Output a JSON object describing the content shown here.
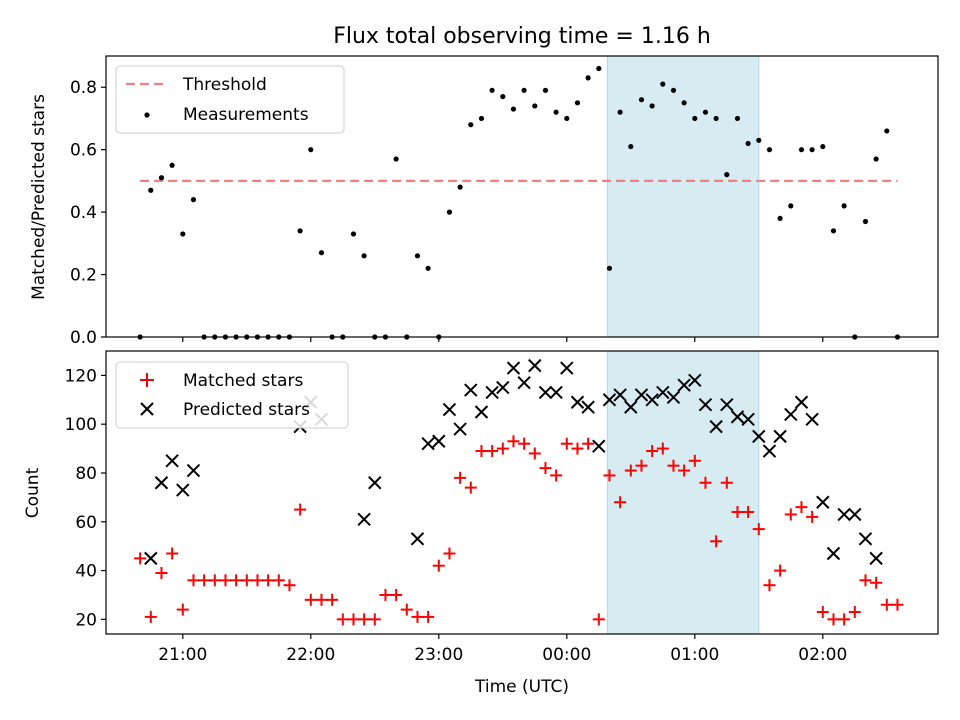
{
  "chart_data": [
    {
      "type": "scatter",
      "title": "Flux total observing time = 1.16 h",
      "ylabel": "Matched/Predicted stars",
      "xlim": [
        "20:24",
        "02:54"
      ],
      "ylim": [
        0,
        0.9
      ],
      "yticks": [
        "0.0",
        "0.2",
        "0.4",
        "0.6",
        "0.8"
      ],
      "shaded_span": [
        "00:19",
        "01:30"
      ],
      "legend": {
        "position": "top-left",
        "entries": [
          "Threshold",
          "Measurements"
        ]
      },
      "threshold": {
        "name": "Threshold",
        "value": 0.5,
        "x": [
          "20:40",
          "02:35"
        ],
        "color": "#f08080"
      },
      "measurements": {
        "name": "Measurements",
        "color": "#000000",
        "x": [
          "20:40",
          "20:45",
          "20:50",
          "20:55",
          "21:00",
          "21:05",
          "21:10",
          "21:15",
          "21:20",
          "21:25",
          "21:30",
          "21:35",
          "21:40",
          "21:45",
          "21:50",
          "21:55",
          "22:00",
          "22:05",
          "22:10",
          "22:15",
          "22:20",
          "22:25",
          "22:30",
          "22:35",
          "22:40",
          "22:45",
          "22:50",
          "22:55",
          "23:00",
          "23:05",
          "23:10",
          "23:15",
          "23:20",
          "23:25",
          "23:30",
          "23:35",
          "23:40",
          "23:45",
          "23:50",
          "23:55",
          "00:00",
          "00:05",
          "00:10",
          "00:15",
          "00:20",
          "00:25",
          "00:30",
          "00:35",
          "00:40",
          "00:45",
          "00:50",
          "00:55",
          "01:00",
          "01:05",
          "01:10",
          "01:15",
          "01:20",
          "01:25",
          "01:30",
          "01:35",
          "01:40",
          "01:45",
          "01:50",
          "01:55",
          "02:00",
          "02:05",
          "02:10",
          "02:15",
          "02:20",
          "02:25",
          "02:30",
          "02:35"
        ],
        "y": [
          0.0,
          0.47,
          0.51,
          0.55,
          0.33,
          0.44,
          0.0,
          0.0,
          0.0,
          0.0,
          0.0,
          0.0,
          0.0,
          0.0,
          0.0,
          0.34,
          0.6,
          0.27,
          0.0,
          0.0,
          0.33,
          0.26,
          0.0,
          0.0,
          0.57,
          0.0,
          0.26,
          0.22,
          0.0,
          0.4,
          0.48,
          0.68,
          0.7,
          0.79,
          0.77,
          0.73,
          0.79,
          0.74,
          0.79,
          0.72,
          0.7,
          0.75,
          0.83,
          0.86,
          0.22,
          0.72,
          0.61,
          0.76,
          0.74,
          0.81,
          0.79,
          0.75,
          0.7,
          0.72,
          0.7,
          0.52,
          0.7,
          0.62,
          0.63,
          0.6,
          0.38,
          0.42,
          0.6,
          0.6,
          0.61,
          0.34,
          0.42,
          0.0,
          0.37,
          0.57,
          0.66,
          0.0
        ]
      }
    },
    {
      "type": "scatter",
      "xlabel": "Time (UTC)",
      "ylabel": "Count",
      "xlim": [
        "20:24",
        "02:54"
      ],
      "ylim": [
        14,
        130
      ],
      "xticks": [
        "21:00",
        "22:00",
        "23:00",
        "00:00",
        "01:00",
        "02:00"
      ],
      "yticks": [
        20,
        40,
        60,
        80,
        100,
        120
      ],
      "shaded_span": [
        "00:19",
        "01:30"
      ],
      "legend": {
        "position": "top-left",
        "entries": [
          "Matched stars",
          "Predicted stars"
        ]
      },
      "series": [
        {
          "name": "Matched stars",
          "marker": "+",
          "color": "#ff0000",
          "x": [
            "20:40",
            "20:45",
            "20:50",
            "20:55",
            "21:00",
            "21:05",
            "21:10",
            "21:15",
            "21:20",
            "21:25",
            "21:30",
            "21:35",
            "21:40",
            "21:45",
            "21:50",
            "21:55",
            "22:00",
            "22:05",
            "22:10",
            "22:15",
            "22:20",
            "22:25",
            "22:30",
            "22:35",
            "22:40",
            "22:45",
            "22:50",
            "22:55",
            "23:00",
            "23:05",
            "23:10",
            "23:15",
            "23:20",
            "23:25",
            "23:30",
            "23:35",
            "23:40",
            "23:45",
            "23:50",
            "23:55",
            "00:00",
            "00:05",
            "00:10",
            "00:15",
            "00:20",
            "00:25",
            "00:30",
            "00:35",
            "00:40",
            "00:45",
            "00:50",
            "00:55",
            "01:00",
            "01:05",
            "01:10",
            "01:15",
            "01:20",
            "01:25",
            "01:30",
            "01:35",
            "01:40",
            "01:45",
            "01:50",
            "01:55",
            "02:00",
            "02:05",
            "02:10",
            "02:15",
            "02:20",
            "02:25",
            "02:30",
            "02:35"
          ],
          "y": [
            45,
            21,
            39,
            47,
            24,
            36,
            36,
            36,
            36,
            36,
            36,
            36,
            36,
            36,
            34,
            65,
            28,
            28,
            28,
            20,
            20,
            20,
            20,
            30,
            30,
            24,
            21,
            21,
            42,
            47,
            78,
            74,
            89,
            89,
            90,
            93,
            92,
            88,
            82,
            79,
            92,
            90,
            92,
            20,
            79,
            68,
            81,
            83,
            89,
            90,
            83,
            81,
            85,
            76,
            52,
            76,
            64,
            64,
            57,
            34,
            40,
            63,
            66,
            62,
            23,
            20,
            20,
            23,
            36,
            35,
            26,
            26
          ]
        },
        {
          "name": "Predicted stars",
          "marker": "x",
          "color": "#000000",
          "x": [
            "20:45",
            "20:50",
            "20:55",
            "21:00",
            "21:05",
            "21:55",
            "22:00",
            "22:05",
            "22:25",
            "22:30",
            "22:50",
            "22:55",
            "23:00",
            "23:05",
            "23:10",
            "23:15",
            "23:20",
            "23:25",
            "23:30",
            "23:35",
            "23:40",
            "23:45",
            "23:50",
            "23:55",
            "00:00",
            "00:05",
            "00:10",
            "00:15",
            "00:20",
            "00:25",
            "00:30",
            "00:35",
            "00:40",
            "00:45",
            "00:50",
            "00:55",
            "01:00",
            "01:05",
            "01:10",
            "01:15",
            "01:20",
            "01:25",
            "01:30",
            "01:35",
            "01:40",
            "01:45",
            "01:50",
            "01:55",
            "02:00",
            "02:05",
            "02:10",
            "02:15",
            "02:20",
            "02:25"
          ],
          "y": [
            45,
            76,
            85,
            73,
            81,
            99,
            109,
            102,
            61,
            76,
            53,
            92,
            93,
            106,
            98,
            114,
            105,
            113,
            115,
            123,
            117,
            124,
            113,
            113,
            123,
            109,
            107,
            91,
            110,
            112,
            107,
            112,
            110,
            113,
            111,
            116,
            118,
            108,
            99,
            108,
            103,
            102,
            95,
            89,
            95,
            104,
            109,
            102,
            68,
            47,
            63,
            63,
            53,
            45
          ]
        }
      ]
    }
  ]
}
